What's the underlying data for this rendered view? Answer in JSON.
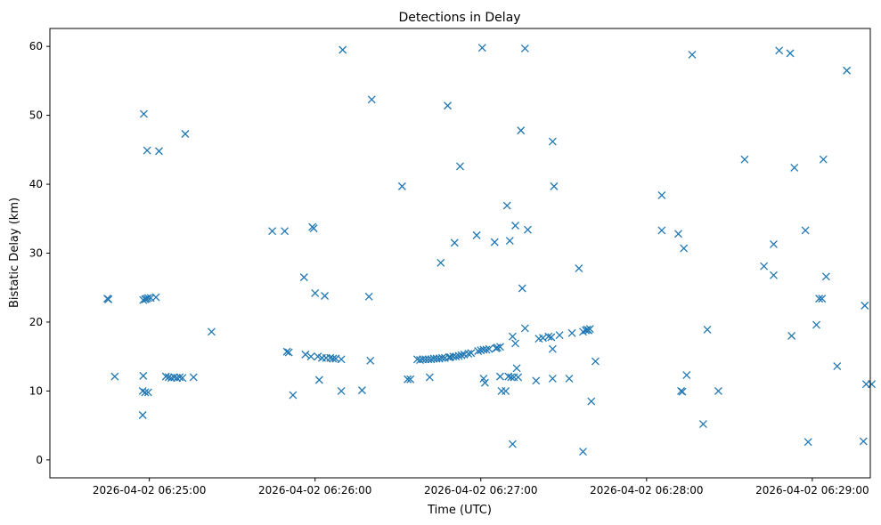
{
  "chart_data": {
    "type": "scatter",
    "title": "Detections in Delay",
    "xlabel": "Time (UTC)",
    "ylabel": "Bistatic Delay (km)",
    "x_unit": "seconds after 2026-04-02 06:24:00 UTC",
    "xlim": [
      24,
      321
    ],
    "ylim": [
      -2.6,
      62.6
    ],
    "x_ticks": [
      {
        "value": 60,
        "label": "2026-04-02 06:25:00"
      },
      {
        "value": 120,
        "label": "2026-04-02 06:26:00"
      },
      {
        "value": 180,
        "label": "2026-04-02 06:27:00"
      },
      {
        "value": 240,
        "label": "2026-04-02 06:28:00"
      },
      {
        "value": 300,
        "label": "2026-04-02 06:29:00"
      }
    ],
    "y_ticks": [
      0,
      10,
      20,
      30,
      40,
      50,
      60
    ],
    "marker": "x",
    "series": [
      {
        "name": "detections",
        "color": "#1f77b4",
        "points": [
          [
            44.8,
            23.4
          ],
          [
            45.2,
            23.3
          ],
          [
            47.5,
            12.1
          ],
          [
            57.6,
            6.5
          ],
          [
            57.6,
            10.0
          ],
          [
            57.8,
            12.2
          ],
          [
            57.8,
            23.2
          ],
          [
            58.0,
            50.2
          ],
          [
            58.5,
            23.3
          ],
          [
            58.5,
            9.8
          ],
          [
            59.0,
            23.4
          ],
          [
            59.2,
            44.9
          ],
          [
            59.6,
            9.8
          ],
          [
            59.6,
            23.5
          ],
          [
            60.5,
            23.5
          ],
          [
            62.4,
            23.6
          ],
          [
            63.5,
            44.8
          ],
          [
            66.0,
            12.1
          ],
          [
            67.0,
            12.0
          ],
          [
            68.0,
            11.9
          ],
          [
            69.0,
            12.0
          ],
          [
            70.0,
            11.9
          ],
          [
            71.0,
            12.0
          ],
          [
            72.0,
            11.9
          ],
          [
            73.0,
            47.3
          ],
          [
            76.0,
            12.0
          ],
          [
            82.5,
            18.6
          ],
          [
            104.5,
            33.2
          ],
          [
            109.0,
            33.2
          ],
          [
            109.8,
            15.7
          ],
          [
            110.5,
            15.6
          ],
          [
            112.0,
            9.4
          ],
          [
            116.0,
            26.5
          ],
          [
            116.5,
            15.3
          ],
          [
            118.5,
            15.0
          ],
          [
            119.0,
            33.8
          ],
          [
            119.5,
            33.6
          ],
          [
            120.0,
            24.2
          ],
          [
            121.0,
            15.0
          ],
          [
            121.5,
            11.6
          ],
          [
            122.5,
            14.8
          ],
          [
            123.5,
            23.8
          ],
          [
            124.0,
            14.8
          ],
          [
            125.5,
            14.8
          ],
          [
            126.5,
            14.7
          ],
          [
            127.5,
            14.7
          ],
          [
            129.5,
            10.0
          ],
          [
            129.5,
            14.6
          ],
          [
            130.0,
            59.5
          ],
          [
            137.0,
            10.1
          ],
          [
            139.5,
            23.7
          ],
          [
            140.0,
            14.4
          ],
          [
            140.5,
            52.3
          ],
          [
            151.5,
            39.7
          ],
          [
            153.5,
            11.7
          ],
          [
            154.5,
            11.7
          ],
          [
            157.0,
            14.6
          ],
          [
            158.0,
            14.5
          ],
          [
            159.0,
            14.6
          ],
          [
            160.0,
            14.6
          ],
          [
            161.0,
            14.6
          ],
          [
            161.5,
            12.0
          ],
          [
            162.0,
            14.6
          ],
          [
            163.0,
            14.7
          ],
          [
            164.0,
            14.7
          ],
          [
            165.0,
            14.7
          ],
          [
            165.5,
            28.6
          ],
          [
            166.0,
            14.8
          ],
          [
            167.0,
            14.8
          ],
          [
            168.0,
            51.4
          ],
          [
            168.5,
            14.9
          ],
          [
            169.0,
            14.9
          ],
          [
            170.0,
            15.0
          ],
          [
            170.5,
            31.5
          ],
          [
            171.0,
            15.0
          ],
          [
            172.0,
            15.1
          ],
          [
            172.5,
            42.6
          ],
          [
            173.0,
            15.2
          ],
          [
            174.0,
            15.3
          ],
          [
            175.5,
            15.4
          ],
          [
            176.5,
            15.5
          ],
          [
            178.5,
            32.6
          ],
          [
            179.0,
            15.8
          ],
          [
            180.0,
            15.9
          ],
          [
            180.5,
            59.8
          ],
          [
            181.0,
            11.8
          ],
          [
            181.0,
            16.0
          ],
          [
            181.5,
            11.2
          ],
          [
            182.0,
            16.0
          ],
          [
            183.0,
            16.1
          ],
          [
            185.0,
            31.6
          ],
          [
            185.5,
            16.2
          ],
          [
            186.0,
            16.3
          ],
          [
            187.0,
            12.1
          ],
          [
            187.0,
            16.4
          ],
          [
            187.5,
            10.0
          ],
          [
            189.0,
            10.0
          ],
          [
            189.5,
            36.9
          ],
          [
            190.0,
            12.1
          ],
          [
            190.5,
            31.8
          ],
          [
            191.0,
            12.0
          ],
          [
            191.5,
            17.9
          ],
          [
            191.5,
            2.3
          ],
          [
            192.0,
            12.0
          ],
          [
            192.5,
            16.9
          ],
          [
            192.5,
            34.0
          ],
          [
            193.0,
            13.3
          ],
          [
            193.5,
            12.0
          ],
          [
            194.5,
            47.8
          ],
          [
            195.0,
            24.9
          ],
          [
            196.0,
            59.7
          ],
          [
            196.0,
            19.1
          ],
          [
            197.0,
            33.4
          ],
          [
            200.0,
            11.5
          ],
          [
            201.0,
            17.6
          ],
          [
            202.5,
            17.7
          ],
          [
            204.5,
            17.9
          ],
          [
            205.5,
            17.8
          ],
          [
            206.0,
            11.8
          ],
          [
            206.0,
            16.1
          ],
          [
            206.0,
            46.2
          ],
          [
            206.5,
            39.7
          ],
          [
            208.5,
            18.1
          ],
          [
            212.0,
            11.8
          ],
          [
            213.0,
            18.4
          ],
          [
            215.5,
            27.8
          ],
          [
            217.0,
            1.2
          ],
          [
            217.0,
            18.6
          ],
          [
            218.0,
            18.8
          ],
          [
            218.5,
            18.9
          ],
          [
            219.0,
            18.8
          ],
          [
            219.5,
            19.0
          ],
          [
            220.0,
            8.5
          ],
          [
            221.5,
            14.3
          ],
          [
            245.5,
            38.4
          ],
          [
            245.5,
            33.3
          ],
          [
            251.5,
            32.8
          ],
          [
            252.5,
            10.0
          ],
          [
            253.0,
            9.9
          ],
          [
            253.5,
            30.7
          ],
          [
            254.5,
            12.3
          ],
          [
            256.5,
            58.8
          ],
          [
            260.5,
            5.2
          ],
          [
            262.0,
            18.9
          ],
          [
            266.0,
            10.0
          ],
          [
            275.5,
            43.6
          ],
          [
            282.5,
            28.1
          ],
          [
            286.0,
            26.8
          ],
          [
            286.0,
            31.3
          ],
          [
            288.0,
            59.4
          ],
          [
            292.0,
            59.0
          ],
          [
            292.5,
            18.0
          ],
          [
            293.5,
            42.4
          ],
          [
            297.5,
            33.3
          ],
          [
            298.5,
            2.6
          ],
          [
            301.5,
            19.6
          ],
          [
            302.5,
            23.4
          ],
          [
            303.5,
            23.4
          ],
          [
            304.0,
            43.6
          ],
          [
            305.0,
            26.6
          ],
          [
            309.0,
            13.6
          ],
          [
            312.5,
            56.5
          ],
          [
            318.5,
            2.7
          ],
          [
            319.0,
            22.4
          ],
          [
            319.5,
            11.0
          ],
          [
            321.5,
            11.0
          ]
        ]
      }
    ]
  }
}
